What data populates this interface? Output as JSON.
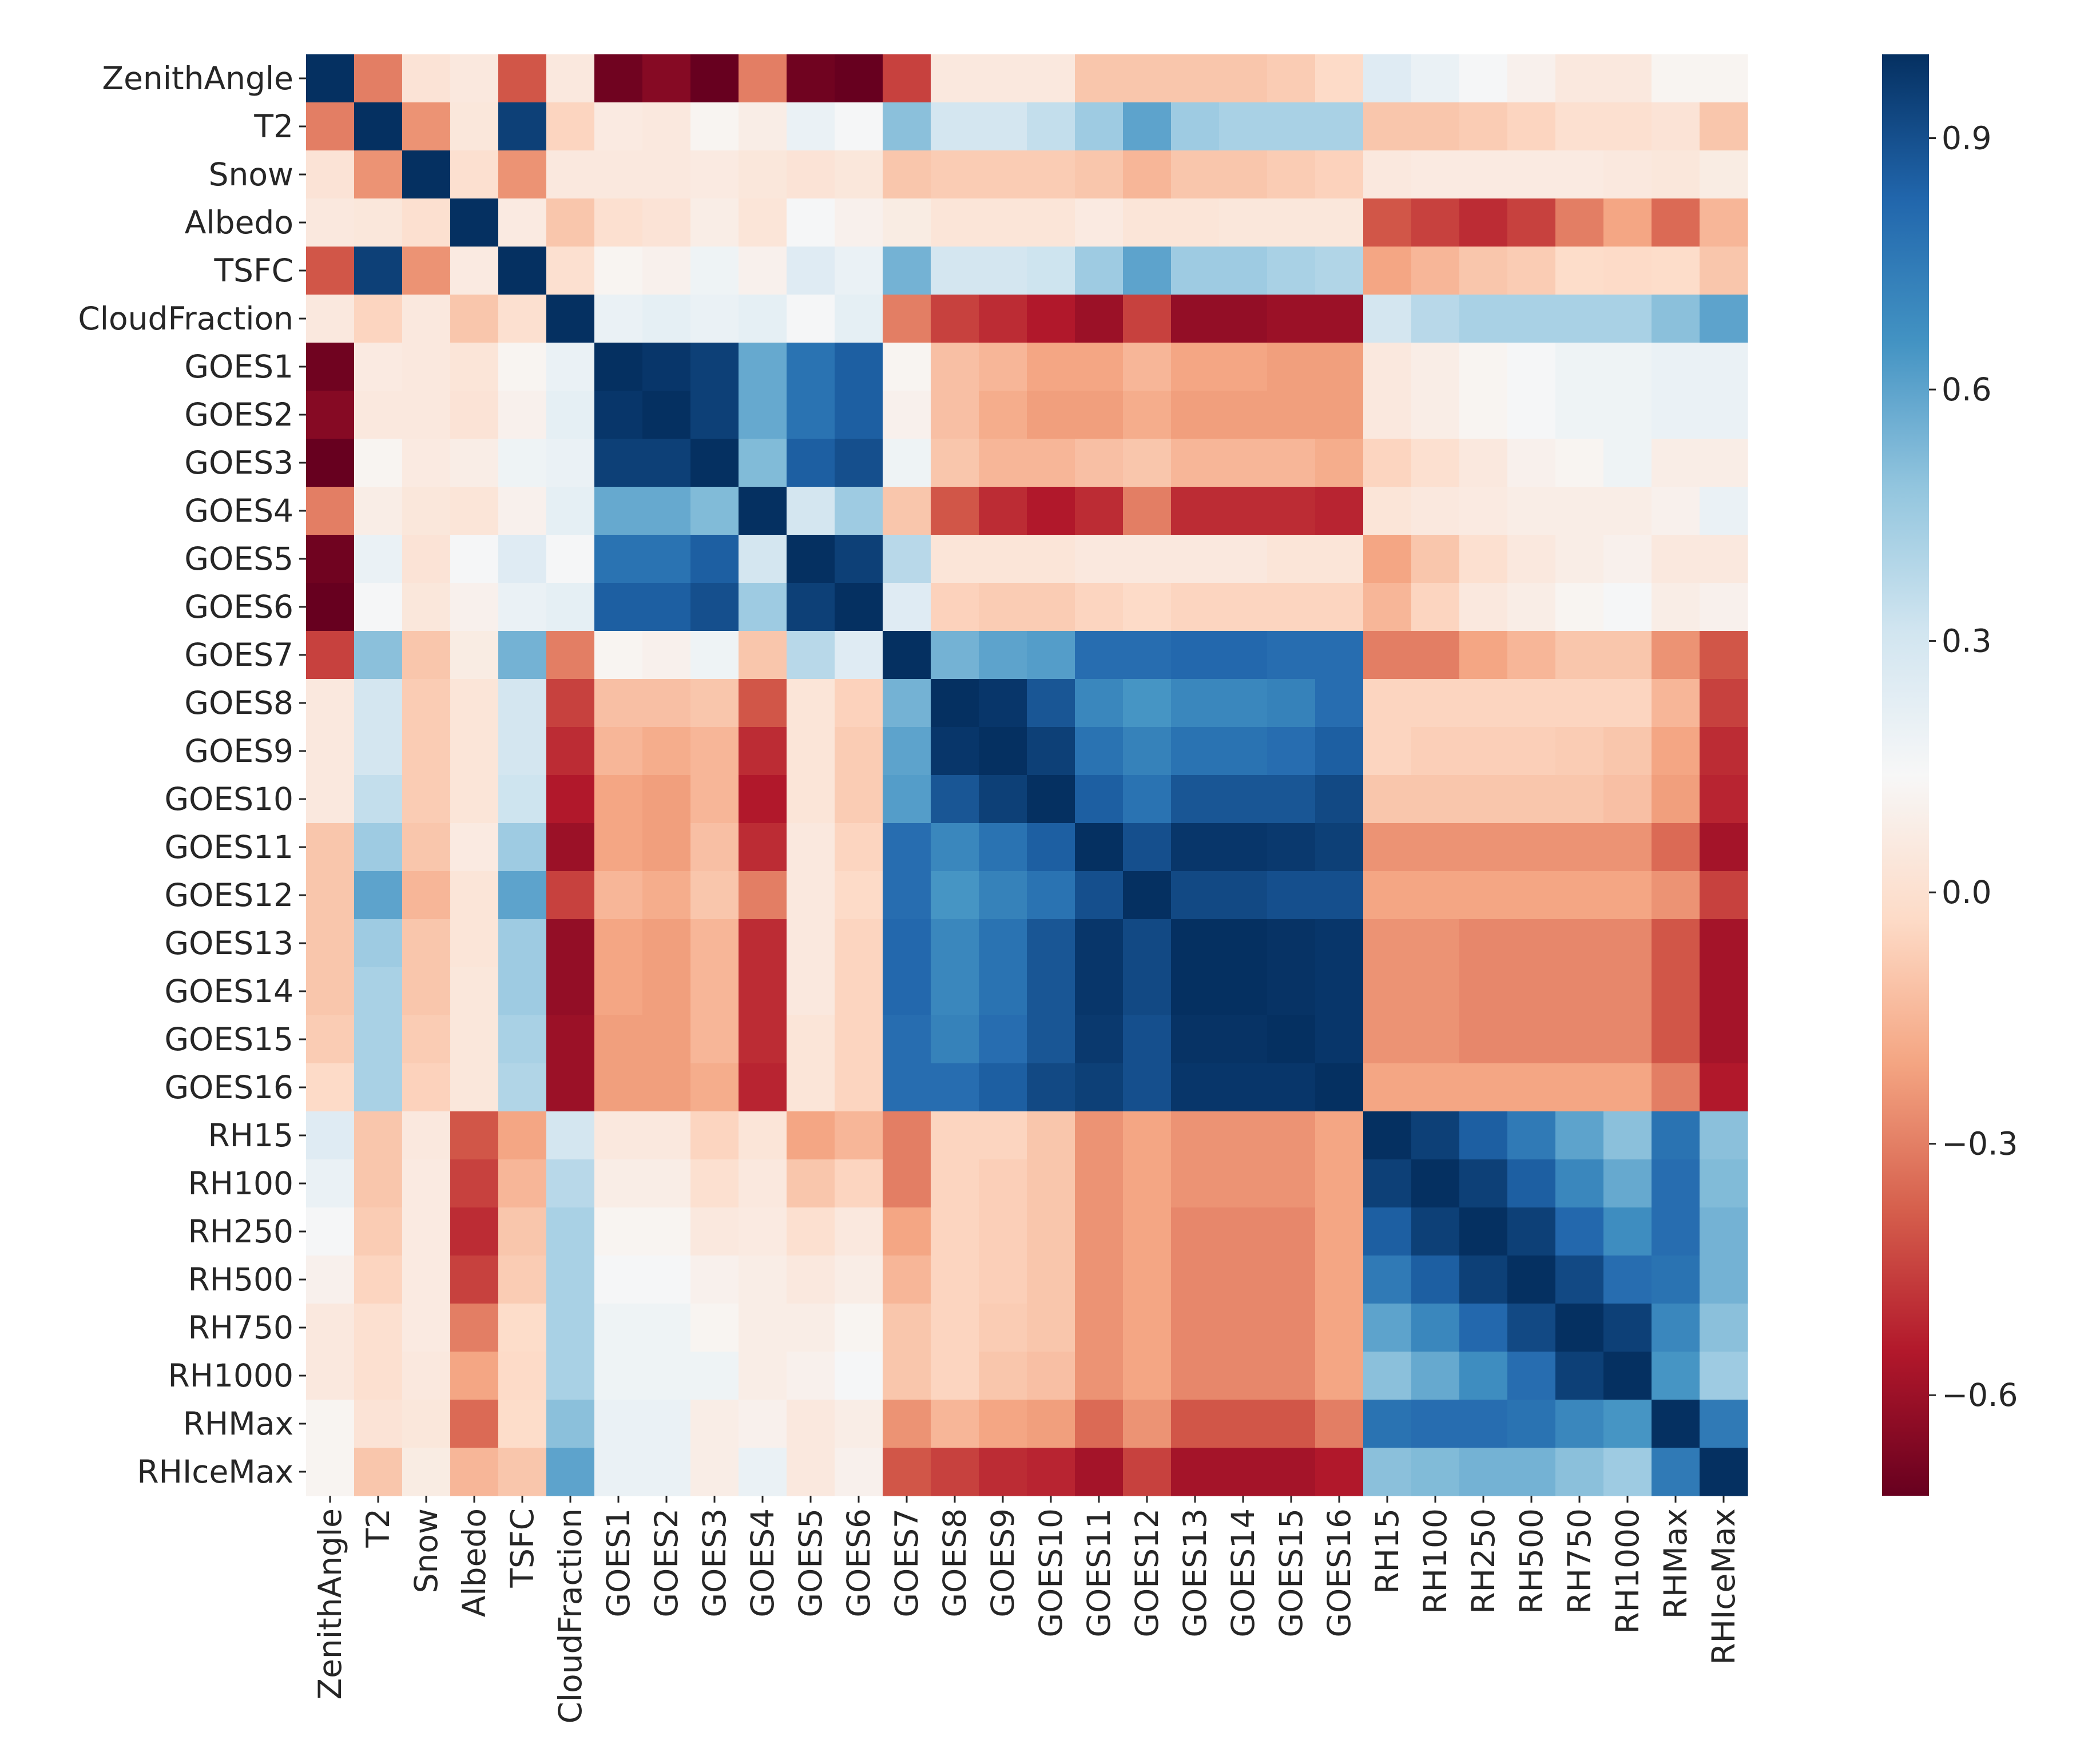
{
  "chart_data": {
    "type": "heatmap",
    "title": "",
    "xlabel": "",
    "ylabel": "",
    "labels": [
      "ZenithAngle",
      "T2",
      "Snow",
      "Albedo",
      "TSFC",
      "CloudFraction",
      "GOES1",
      "GOES2",
      "GOES3",
      "GOES4",
      "GOES5",
      "GOES6",
      "GOES7",
      "GOES8",
      "GOES9",
      "GOES10",
      "GOES11",
      "GOES12",
      "GOES13",
      "GOES14",
      "GOES15",
      "GOES16",
      "RH15",
      "RH100",
      "RH250",
      "RH500",
      "RH750",
      "RH1000",
      "RHMax",
      "RHIceMax"
    ],
    "value_range": [
      -0.72,
      1.0
    ],
    "colormap": "RdBu",
    "colorbar": {
      "ticks": [
        0.9,
        0.6,
        0.3,
        0.0,
        -0.3,
        -0.6
      ],
      "tick_labels": [
        "0.9",
        "0.6",
        "0.3",
        "0.0",
        "−0.3",
        "−0.6"
      ]
    },
    "matrix": [
      [
        1.0,
        -0.3,
        0.02,
        0.05,
        -0.4,
        0.05,
        -0.7,
        -0.65,
        -0.72,
        -0.3,
        -0.7,
        -0.72,
        -0.45,
        0.05,
        0.05,
        0.05,
        -0.1,
        -0.1,
        -0.1,
        -0.1,
        -0.08,
        -0.03,
        0.25,
        0.2,
        0.15,
        0.1,
        0.05,
        0.05,
        0.12,
        0.12
      ],
      [
        -0.3,
        1.0,
        -0.25,
        0.04,
        0.95,
        -0.05,
        0.06,
        0.05,
        0.12,
        0.08,
        0.2,
        0.15,
        0.5,
        0.3,
        0.3,
        0.35,
        0.45,
        0.6,
        0.45,
        0.42,
        0.42,
        0.42,
        -0.1,
        -0.1,
        -0.08,
        -0.05,
        0.0,
        0.0,
        0.02,
        -0.1
      ],
      [
        0.02,
        -0.25,
        1.0,
        0.0,
        -0.25,
        0.05,
        0.05,
        0.05,
        0.06,
        0.04,
        0.02,
        0.04,
        -0.1,
        -0.08,
        -0.08,
        -0.08,
        -0.1,
        -0.15,
        -0.1,
        -0.1,
        -0.08,
        -0.06,
        0.05,
        0.06,
        0.06,
        0.06,
        0.06,
        0.05,
        0.04,
        0.07
      ],
      [
        0.05,
        0.04,
        0.0,
        1.0,
        0.06,
        -0.1,
        0.0,
        0.02,
        0.08,
        0.03,
        0.15,
        0.1,
        0.07,
        0.03,
        0.03,
        0.03,
        0.06,
        0.03,
        0.03,
        0.04,
        0.04,
        0.04,
        -0.4,
        -0.45,
        -0.5,
        -0.45,
        -0.3,
        -0.2,
        -0.35,
        -0.15
      ],
      [
        -0.4,
        0.95,
        -0.25,
        0.06,
        1.0,
        0.0,
        0.12,
        0.1,
        0.18,
        0.1,
        0.25,
        0.2,
        0.55,
        0.3,
        0.3,
        0.32,
        0.45,
        0.6,
        0.45,
        0.45,
        0.42,
        0.4,
        -0.2,
        -0.15,
        -0.1,
        -0.08,
        -0.02,
        -0.03,
        -0.02,
        -0.1
      ],
      [
        0.05,
        -0.05,
        0.05,
        -0.1,
        0.0,
        1.0,
        0.2,
        0.22,
        0.2,
        0.22,
        0.15,
        0.22,
        -0.3,
        -0.45,
        -0.5,
        -0.55,
        -0.6,
        -0.45,
        -0.62,
        -0.62,
        -0.6,
        -0.6,
        0.3,
        0.38,
        0.42,
        0.42,
        0.42,
        0.42,
        0.5,
        0.6
      ],
      [
        -0.7,
        0.06,
        0.05,
        0.03,
        0.12,
        0.2,
        1.0,
        0.98,
        0.95,
        0.58,
        0.78,
        0.85,
        0.12,
        -0.12,
        -0.15,
        -0.2,
        -0.2,
        -0.15,
        -0.2,
        -0.2,
        -0.22,
        -0.22,
        0.05,
        0.08,
        0.12,
        0.15,
        0.18,
        0.18,
        0.2,
        0.2
      ],
      [
        -0.65,
        0.05,
        0.05,
        0.02,
        0.1,
        0.22,
        0.98,
        1.0,
        0.95,
        0.58,
        0.78,
        0.85,
        0.1,
        -0.12,
        -0.18,
        -0.22,
        -0.22,
        -0.18,
        -0.22,
        -0.22,
        -0.22,
        -0.22,
        0.05,
        0.08,
        0.12,
        0.15,
        0.18,
        0.18,
        0.2,
        0.2
      ],
      [
        -0.72,
        0.12,
        0.06,
        0.08,
        0.18,
        0.2,
        0.95,
        0.95,
        1.0,
        0.52,
        0.85,
        0.9,
        0.18,
        -0.1,
        -0.15,
        -0.15,
        -0.12,
        -0.1,
        -0.15,
        -0.15,
        -0.15,
        -0.18,
        -0.05,
        0.0,
        0.05,
        0.1,
        0.12,
        0.18,
        0.08,
        0.08
      ],
      [
        -0.3,
        0.08,
        0.04,
        0.03,
        0.1,
        0.22,
        0.58,
        0.58,
        0.52,
        1.0,
        0.3,
        0.45,
        -0.1,
        -0.4,
        -0.5,
        -0.55,
        -0.5,
        -0.3,
        -0.5,
        -0.5,
        -0.5,
        -0.52,
        0.03,
        0.05,
        0.06,
        0.08,
        0.08,
        0.08,
        0.1,
        0.2
      ],
      [
        -0.7,
        0.2,
        0.02,
        0.15,
        0.25,
        0.15,
        0.78,
        0.78,
        0.85,
        0.3,
        1.0,
        0.95,
        0.38,
        0.03,
        0.03,
        0.03,
        0.05,
        0.05,
        0.05,
        0.05,
        0.03,
        0.03,
        -0.2,
        -0.1,
        0.0,
        0.05,
        0.08,
        0.1,
        0.05,
        0.05
      ],
      [
        -0.72,
        0.15,
        0.04,
        0.1,
        0.2,
        0.22,
        0.85,
        0.85,
        0.9,
        0.45,
        0.95,
        1.0,
        0.25,
        -0.06,
        -0.08,
        -0.08,
        -0.05,
        -0.03,
        -0.05,
        -0.05,
        -0.05,
        -0.05,
        -0.15,
        -0.05,
        0.05,
        0.08,
        0.12,
        0.15,
        0.08,
        0.1
      ],
      [
        -0.45,
        0.5,
        -0.1,
        0.07,
        0.55,
        -0.3,
        0.12,
        0.1,
        0.18,
        -0.1,
        0.38,
        0.25,
        1.0,
        0.55,
        0.6,
        0.62,
        0.8,
        0.8,
        0.82,
        0.82,
        0.8,
        0.8,
        -0.3,
        -0.3,
        -0.2,
        -0.15,
        -0.1,
        -0.1,
        -0.25,
        -0.4
      ],
      [
        0.05,
        0.3,
        -0.08,
        0.03,
        0.3,
        -0.45,
        -0.12,
        -0.12,
        -0.1,
        -0.4,
        0.03,
        -0.06,
        0.55,
        1.0,
        0.98,
        0.88,
        0.7,
        0.65,
        0.7,
        0.7,
        0.72,
        0.8,
        -0.05,
        -0.05,
        -0.05,
        -0.05,
        -0.05,
        -0.05,
        -0.15,
        -0.45
      ],
      [
        0.05,
        0.3,
        -0.08,
        0.03,
        0.3,
        -0.5,
        -0.15,
        -0.18,
        -0.15,
        -0.5,
        0.03,
        -0.08,
        0.6,
        0.98,
        1.0,
        0.95,
        0.78,
        0.72,
        0.78,
        0.78,
        0.8,
        0.85,
        -0.05,
        -0.07,
        -0.07,
        -0.07,
        -0.08,
        -0.1,
        -0.2,
        -0.5
      ],
      [
        0.05,
        0.35,
        -0.08,
        0.03,
        0.32,
        -0.55,
        -0.2,
        -0.22,
        -0.15,
        -0.55,
        0.03,
        -0.08,
        0.62,
        0.88,
        0.95,
        1.0,
        0.85,
        0.78,
        0.88,
        0.88,
        0.88,
        0.92,
        -0.1,
        -0.1,
        -0.1,
        -0.1,
        -0.1,
        -0.12,
        -0.22,
        -0.52
      ],
      [
        -0.1,
        0.45,
        -0.1,
        0.06,
        0.45,
        -0.6,
        -0.2,
        -0.22,
        -0.12,
        -0.5,
        0.05,
        -0.05,
        0.8,
        0.7,
        0.78,
        0.85,
        1.0,
        0.9,
        0.98,
        0.98,
        0.97,
        0.95,
        -0.25,
        -0.25,
        -0.25,
        -0.25,
        -0.25,
        -0.25,
        -0.35,
        -0.58
      ],
      [
        -0.1,
        0.6,
        -0.15,
        0.03,
        0.6,
        -0.45,
        -0.15,
        -0.18,
        -0.1,
        -0.3,
        0.05,
        -0.03,
        0.8,
        0.65,
        0.72,
        0.78,
        0.9,
        1.0,
        0.92,
        0.92,
        0.9,
        0.9,
        -0.2,
        -0.2,
        -0.2,
        -0.2,
        -0.2,
        -0.2,
        -0.25,
        -0.45
      ],
      [
        -0.1,
        0.45,
        -0.1,
        0.03,
        0.45,
        -0.62,
        -0.2,
        -0.22,
        -0.15,
        -0.5,
        0.05,
        -0.05,
        0.82,
        0.7,
        0.78,
        0.88,
        0.98,
        0.92,
        1.0,
        1.0,
        0.99,
        0.98,
        -0.25,
        -0.25,
        -0.28,
        -0.28,
        -0.28,
        -0.28,
        -0.4,
        -0.58
      ],
      [
        -0.1,
        0.42,
        -0.1,
        0.04,
        0.45,
        -0.62,
        -0.2,
        -0.22,
        -0.15,
        -0.5,
        0.05,
        -0.05,
        0.82,
        0.7,
        0.78,
        0.88,
        0.98,
        0.92,
        1.0,
        1.0,
        0.99,
        0.98,
        -0.25,
        -0.25,
        -0.28,
        -0.28,
        -0.28,
        -0.28,
        -0.4,
        -0.58
      ],
      [
        -0.08,
        0.42,
        -0.08,
        0.04,
        0.42,
        -0.6,
        -0.22,
        -0.22,
        -0.15,
        -0.5,
        0.03,
        -0.05,
        0.8,
        0.72,
        0.8,
        0.88,
        0.97,
        0.9,
        0.99,
        0.99,
        1.0,
        0.98,
        -0.25,
        -0.25,
        -0.28,
        -0.28,
        -0.28,
        -0.28,
        -0.4,
        -0.58
      ],
      [
        -0.03,
        0.42,
        -0.06,
        0.04,
        0.4,
        -0.6,
        -0.22,
        -0.22,
        -0.18,
        -0.52,
        0.03,
        -0.05,
        0.8,
        0.8,
        0.85,
        0.92,
        0.95,
        0.9,
        0.98,
        0.98,
        0.98,
        1.0,
        -0.2,
        -0.2,
        -0.2,
        -0.2,
        -0.2,
        -0.2,
        -0.3,
        -0.55
      ],
      [
        0.25,
        -0.1,
        0.05,
        -0.4,
        -0.2,
        0.3,
        0.05,
        0.05,
        -0.05,
        0.03,
        -0.2,
        -0.15,
        -0.3,
        -0.05,
        -0.05,
        -0.1,
        -0.25,
        -0.2,
        -0.25,
        -0.25,
        -0.25,
        -0.2,
        1.0,
        0.95,
        0.85,
        0.75,
        0.6,
        0.5,
        0.78,
        0.5
      ],
      [
        0.2,
        -0.1,
        0.06,
        -0.45,
        -0.15,
        0.38,
        0.08,
        0.08,
        0.0,
        0.05,
        -0.1,
        -0.05,
        -0.3,
        -0.05,
        -0.07,
        -0.1,
        -0.25,
        -0.2,
        -0.25,
        -0.25,
        -0.25,
        -0.2,
        0.95,
        1.0,
        0.95,
        0.85,
        0.7,
        0.58,
        0.8,
        0.52
      ],
      [
        0.15,
        -0.08,
        0.06,
        -0.5,
        -0.1,
        0.42,
        0.12,
        0.12,
        0.05,
        0.06,
        0.0,
        0.05,
        -0.2,
        -0.05,
        -0.07,
        -0.1,
        -0.25,
        -0.2,
        -0.28,
        -0.28,
        -0.28,
        -0.2,
        0.85,
        0.95,
        1.0,
        0.95,
        0.82,
        0.68,
        0.8,
        0.55
      ],
      [
        0.1,
        -0.05,
        0.06,
        -0.45,
        -0.08,
        0.42,
        0.15,
        0.15,
        0.1,
        0.08,
        0.05,
        0.08,
        -0.15,
        -0.05,
        -0.07,
        -0.1,
        -0.25,
        -0.2,
        -0.28,
        -0.28,
        -0.28,
        -0.2,
        0.75,
        0.85,
        0.95,
        1.0,
        0.92,
        0.8,
        0.78,
        0.55
      ],
      [
        0.05,
        0.0,
        0.06,
        -0.3,
        -0.02,
        0.42,
        0.18,
        0.18,
        0.12,
        0.08,
        0.08,
        0.12,
        -0.1,
        -0.05,
        -0.08,
        -0.1,
        -0.25,
        -0.2,
        -0.28,
        -0.28,
        -0.28,
        -0.2,
        0.6,
        0.7,
        0.82,
        0.92,
        1.0,
        0.95,
        0.7,
        0.5
      ],
      [
        0.05,
        0.0,
        0.05,
        -0.2,
        -0.03,
        0.42,
        0.18,
        0.18,
        0.18,
        0.08,
        0.1,
        0.15,
        -0.1,
        -0.05,
        -0.1,
        -0.12,
        -0.25,
        -0.2,
        -0.28,
        -0.28,
        -0.28,
        -0.2,
        0.5,
        0.58,
        0.68,
        0.8,
        0.95,
        1.0,
        0.65,
        0.45
      ],
      [
        0.12,
        0.02,
        0.04,
        -0.35,
        -0.02,
        0.5,
        0.2,
        0.2,
        0.08,
        0.1,
        0.05,
        0.08,
        -0.25,
        -0.15,
        -0.2,
        -0.22,
        -0.35,
        -0.25,
        -0.4,
        -0.4,
        -0.4,
        -0.3,
        0.78,
        0.8,
        0.8,
        0.78,
        0.7,
        0.65,
        1.0,
        0.75
      ],
      [
        0.12,
        -0.1,
        0.07,
        -0.15,
        -0.1,
        0.6,
        0.2,
        0.2,
        0.08,
        0.2,
        0.05,
        0.1,
        -0.4,
        -0.45,
        -0.5,
        -0.52,
        -0.58,
        -0.45,
        -0.58,
        -0.58,
        -0.58,
        -0.55,
        0.5,
        0.52,
        0.55,
        0.55,
        0.5,
        0.45,
        0.75,
        1.0
      ]
    ]
  }
}
